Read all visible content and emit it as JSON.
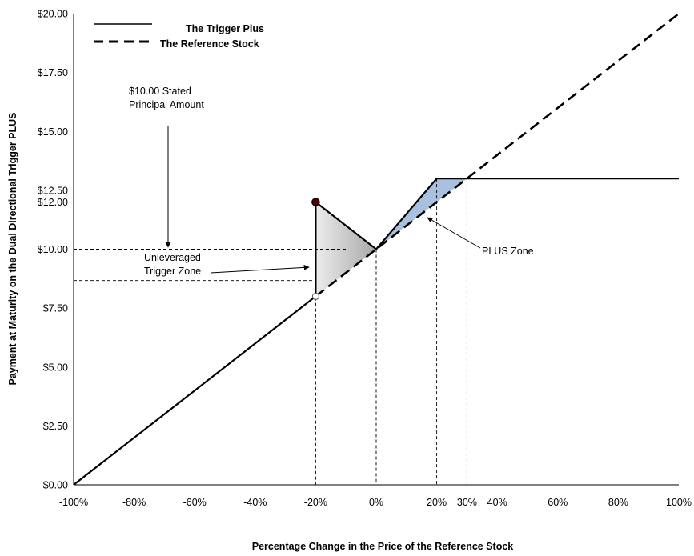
{
  "chart_data": {
    "type": "line",
    "xlabel": "Percentage Change in the Price of the Reference Stock",
    "ylabel": "Payment at Maturity on the Dual Directional Trigger PLUS",
    "xlim": [
      -100,
      100
    ],
    "ylim": [
      0,
      20
    ],
    "x_tick_values": [
      -100,
      -80,
      -60,
      -40,
      -20,
      0,
      20,
      30,
      40,
      60,
      80,
      100
    ],
    "x_tick_labels": [
      "-100%",
      "-80%",
      "-60%",
      "-40%",
      "-20%",
      "0%",
      "20%",
      "30%",
      "40%",
      "60%",
      "80%",
      "100%"
    ],
    "y_tick_values": [
      0,
      2.5,
      5,
      7.5,
      10,
      12,
      12.5,
      15,
      17.5,
      20
    ],
    "y_tick_labels": [
      "$0.00",
      "$2.50",
      "$5.00",
      "$7.50",
      "$10.00",
      "$12.00",
      "$12.50",
      "$15.00",
      "$17.50",
      "$20.00"
    ],
    "grid": false,
    "legend_position": "top-left",
    "series": [
      {
        "name": "The Trigger Plus",
        "style": "solid",
        "points": [
          [
            -100,
            0
          ],
          [
            -20,
            8
          ],
          [
            -20,
            12
          ],
          [
            0,
            10
          ],
          [
            20,
            13
          ],
          [
            100,
            13
          ]
        ]
      },
      {
        "name": "The Reference Stock",
        "style": "dashed",
        "points": [
          [
            -20,
            8
          ],
          [
            100,
            20
          ]
        ]
      }
    ],
    "annotations": [
      {
        "id": "principal",
        "lines": [
          "$10.00 Stated",
          "Principal Amount"
        ],
        "arrow_to": [
          -20,
          10
        ]
      },
      {
        "id": "trigger",
        "lines": [
          "Unleveraged",
          "Trigger Zone"
        ],
        "arrow_to": [
          -20,
          9
        ]
      },
      {
        "id": "plus",
        "lines": [
          "PLUS Zone"
        ],
        "arrow_to": [
          15,
          11.5
        ]
      }
    ],
    "reference_lines": {
      "vertical": [
        -20,
        0,
        20,
        30
      ],
      "horizontal": [
        [
          12,
          -20
        ],
        [
          10,
          -10
        ],
        [
          8.67,
          -20
        ]
      ]
    },
    "shaded_regions": [
      {
        "name": "trigger-zone",
        "color": "#b8b8b8",
        "points": [
          [
            -20,
            12
          ],
          [
            0,
            10
          ],
          [
            -20,
            8
          ]
        ]
      },
      {
        "name": "plus-zone",
        "color": "#a9c0de",
        "points": [
          [
            0,
            10
          ],
          [
            20,
            13
          ],
          [
            30,
            13
          ],
          [
            20,
            12
          ]
        ]
      }
    ]
  }
}
